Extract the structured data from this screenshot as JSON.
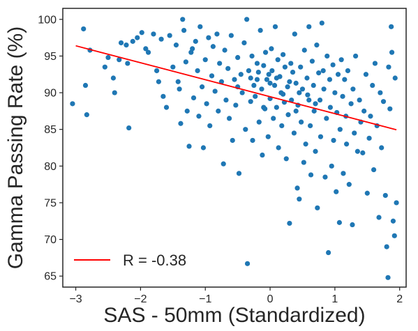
{
  "chart_data": {
    "type": "scatter",
    "title": "",
    "xlabel": "SAS - 50mm (Standardized)",
    "ylabel": "Gamma Passing Rate (%)",
    "xlim": [
      -3.2,
      2.1
    ],
    "ylim": [
      63.5,
      101.5
    ],
    "xticks": [
      -3,
      -2,
      -1,
      0,
      1,
      2
    ],
    "yticks": [
      65,
      70,
      75,
      80,
      85,
      90,
      95,
      100
    ],
    "grid": false,
    "legend": {
      "position": "lower-left",
      "entries": [
        {
          "label": "R = -0.38",
          "color": "#ff0000",
          "kind": "line"
        }
      ]
    },
    "series": [
      {
        "kind": "scatter",
        "color": "#1f77b4",
        "points": [
          [
            -3.05,
            88.5
          ],
          [
            -2.88,
            98.7
          ],
          [
            -2.85,
            91.0
          ],
          [
            -2.83,
            87.0
          ],
          [
            -2.78,
            95.8
          ],
          [
            -2.55,
            93.5
          ],
          [
            -2.5,
            94.8
          ],
          [
            -2.42,
            92.0
          ],
          [
            -2.4,
            90.0
          ],
          [
            -2.33,
            94.5
          ],
          [
            -2.3,
            96.8
          ],
          [
            -2.22,
            96.5
          ],
          [
            -2.2,
            94.0
          ],
          [
            -2.18,
            85.2
          ],
          [
            -2.12,
            97.0
          ],
          [
            -2.05,
            97.5
          ],
          [
            -1.98,
            98.2
          ],
          [
            -1.92,
            96.0
          ],
          [
            -1.88,
            95.5
          ],
          [
            -1.8,
            98.0
          ],
          [
            -1.75,
            93.0
          ],
          [
            -1.72,
            91.5
          ],
          [
            -1.68,
            97.3
          ],
          [
            -1.65,
            89.5
          ],
          [
            -1.6,
            88.0
          ],
          [
            -1.55,
            97.8
          ],
          [
            -1.5,
            93.5
          ],
          [
            -1.45,
            96.5
          ],
          [
            -1.42,
            91.5
          ],
          [
            -1.4,
            90.5
          ],
          [
            -1.38,
            85.8
          ],
          [
            -1.35,
            100.0
          ],
          [
            -1.33,
            98.5
          ],
          [
            -1.3,
            94.2
          ],
          [
            -1.28,
            87.5
          ],
          [
            -1.25,
            82.7
          ],
          [
            -1.22,
            95.5
          ],
          [
            -1.2,
            96.0
          ],
          [
            -1.18,
            89.3
          ],
          [
            -1.15,
            97.0
          ],
          [
            -1.12,
            93.0
          ],
          [
            -1.1,
            86.8
          ],
          [
            -1.08,
            99.0
          ],
          [
            -1.05,
            90.8
          ],
          [
            -1.03,
            82.5
          ],
          [
            -1.0,
            94.5
          ],
          [
            -0.98,
            88.5
          ],
          [
            -0.95,
            97.5
          ],
          [
            -0.93,
            85.5
          ],
          [
            -0.9,
            92.3
          ],
          [
            -0.88,
            96.3
          ],
          [
            -0.85,
            90.2
          ],
          [
            -0.82,
            98.0
          ],
          [
            -0.8,
            87.5
          ],
          [
            -0.78,
            94.0
          ],
          [
            -0.75,
            91.5
          ],
          [
            -0.72,
            80.3
          ],
          [
            -0.7,
            95.8
          ],
          [
            -0.68,
            89.0
          ],
          [
            -0.65,
            93.3
          ],
          [
            -0.63,
            86.5
          ],
          [
            -0.6,
            97.8
          ],
          [
            -0.58,
            83.5
          ],
          [
            -0.55,
            91.8
          ],
          [
            -0.53,
            88.3
          ],
          [
            -0.5,
            94.8
          ],
          [
            -0.48,
            79.0
          ],
          [
            -0.45,
            92.5
          ],
          [
            -0.43,
            90.0
          ],
          [
            -0.4,
            96.8
          ],
          [
            -0.38,
            85.0
          ],
          [
            -0.36,
            100.0
          ],
          [
            -0.35,
            66.7
          ],
          [
            -0.33,
            93.0
          ],
          [
            -0.3,
            88.8
          ],
          [
            -0.28,
            95.0
          ],
          [
            -0.27,
            83.5
          ],
          [
            -0.25,
            91.0
          ],
          [
            -0.23,
            89.5
          ],
          [
            -0.2,
            94.0
          ],
          [
            -0.18,
            92.8
          ],
          [
            -0.17,
            86.0
          ],
          [
            -0.15,
            98.5
          ],
          [
            -0.13,
            90.5
          ],
          [
            -0.12,
            81.5
          ],
          [
            -0.1,
            93.7
          ],
          [
            -0.08,
            87.8
          ],
          [
            -0.07,
            95.5
          ],
          [
            -0.05,
            91.8
          ],
          [
            -0.03,
            84.0
          ],
          [
            -0.02,
            92.5
          ],
          [
            0.0,
            89.2
          ],
          [
            0.02,
            96.0
          ],
          [
            0.03,
            93.0
          ],
          [
            0.05,
            86.5
          ],
          [
            0.07,
            91.0
          ],
          [
            0.08,
            99.0
          ],
          [
            0.1,
            88.0
          ],
          [
            0.12,
            94.5
          ],
          [
            0.13,
            82.5
          ],
          [
            0.15,
            92.2
          ],
          [
            0.17,
            90.0
          ],
          [
            0.18,
            85.5
          ],
          [
            0.2,
            95.2
          ],
          [
            0.22,
            88.7
          ],
          [
            0.23,
            93.5
          ],
          [
            0.25,
            81.0
          ],
          [
            0.27,
            90.8
          ],
          [
            0.28,
            87.0
          ],
          [
            0.3,
            72.2
          ],
          [
            0.32,
            94.0
          ],
          [
            0.33,
            89.0
          ],
          [
            0.35,
            92.8
          ],
          [
            0.37,
            84.5
          ],
          [
            0.38,
            98.0
          ],
          [
            0.4,
            91.3
          ],
          [
            0.42,
            77.0
          ],
          [
            0.43,
            88.3
          ],
          [
            0.45,
            75.5
          ],
          [
            0.47,
            93.5
          ],
          [
            0.48,
            86.0
          ],
          [
            0.5,
            90.5
          ],
          [
            0.52,
            80.5
          ],
          [
            0.53,
            95.8
          ],
          [
            0.55,
            83.0
          ],
          [
            0.57,
            92.0
          ],
          [
            0.58,
            89.7
          ],
          [
            0.6,
            99.0
          ],
          [
            0.62,
            85.5
          ],
          [
            0.63,
            78.8
          ],
          [
            0.65,
            94.3
          ],
          [
            0.67,
            91.0
          ],
          [
            0.68,
            87.5
          ],
          [
            0.7,
            82.0
          ],
          [
            0.72,
            96.5
          ],
          [
            0.73,
            74.3
          ],
          [
            0.75,
            92.7
          ],
          [
            0.77,
            89.0
          ],
          [
            0.78,
            84.0
          ],
          [
            0.8,
            99.5
          ],
          [
            0.82,
            93.0
          ],
          [
            0.83,
            90.5
          ],
          [
            0.85,
            78.5
          ],
          [
            0.87,
            86.5
          ],
          [
            0.88,
            95.0
          ],
          [
            0.9,
            68.2
          ],
          [
            0.92,
            91.8
          ],
          [
            0.93,
            88.0
          ],
          [
            0.95,
            80.0
          ],
          [
            0.97,
            93.8
          ],
          [
            0.98,
            83.5
          ],
          [
            1.0,
            90.0
          ],
          [
            1.02,
            76.5
          ],
          [
            1.03,
            87.3
          ],
          [
            1.05,
            92.5
          ],
          [
            1.07,
            72.3
          ],
          [
            1.08,
            85.0
          ],
          [
            1.1,
            94.5
          ],
          [
            1.12,
            89.5
          ],
          [
            1.13,
            79.0
          ],
          [
            1.15,
            91.8
          ],
          [
            1.17,
            86.8
          ],
          [
            1.18,
            83.0
          ],
          [
            1.2,
            93.0
          ],
          [
            1.22,
            77.5
          ],
          [
            1.25,
            88.5
          ],
          [
            1.27,
            72.0
          ],
          [
            1.28,
            90.5
          ],
          [
            1.3,
            84.5
          ],
          [
            1.32,
            95.0
          ],
          [
            1.35,
            82.0
          ],
          [
            1.38,
            89.0
          ],
          [
            1.4,
            86.0
          ],
          [
            1.43,
            81.8
          ],
          [
            1.45,
            87.5
          ],
          [
            1.48,
            92.5
          ],
          [
            1.5,
            76.3
          ],
          [
            1.53,
            83.8
          ],
          [
            1.55,
            86.8
          ],
          [
            1.58,
            91.0
          ],
          [
            1.6,
            79.5
          ],
          [
            1.62,
            94.0
          ],
          [
            1.65,
            85.5
          ],
          [
            1.68,
            73.0
          ],
          [
            1.7,
            90.0
          ],
          [
            1.72,
            82.5
          ],
          [
            1.75,
            88.8
          ],
          [
            1.78,
            76.0
          ],
          [
            1.8,
            69.0
          ],
          [
            1.82,
            64.8
          ],
          [
            1.83,
            93.5
          ],
          [
            1.85,
            87.8
          ],
          [
            1.87,
            99.0
          ],
          [
            1.88,
            95.5
          ],
          [
            1.9,
            72.5
          ],
          [
            1.92,
            70.5
          ],
          [
            1.93,
            92.0
          ],
          [
            1.95,
            75.0
          ],
          [
            -0.2,
            91.8
          ],
          [
            0.1,
            92.0
          ],
          [
            0.3,
            91.5
          ],
          [
            -0.5,
            90.8
          ],
          [
            0.45,
            90.0
          ],
          [
            0.6,
            89.0
          ],
          [
            -0.1,
            88.0
          ],
          [
            0.2,
            89.8
          ],
          [
            0.4,
            87.5
          ],
          [
            0.0,
            91.3
          ],
          [
            -0.3,
            92.0
          ],
          [
            0.7,
            88.5
          ]
        ]
      },
      {
        "kind": "line",
        "color": "#ff0000",
        "name": "R = -0.38",
        "points": [
          [
            -3.0,
            96.4
          ],
          [
            1.95,
            84.95
          ]
        ]
      }
    ]
  }
}
